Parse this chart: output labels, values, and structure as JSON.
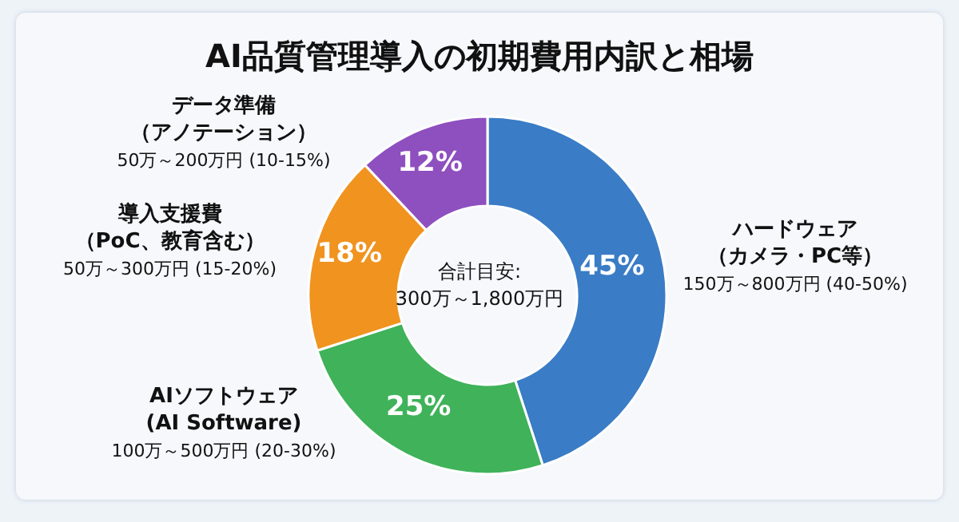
{
  "chart_data": {
    "type": "donut",
    "title": "AI品質管理導入の初期費用内訳と相場",
    "categories": [
      "ハードウェア（カメラ・PC等）\n150万～800万円 (40-50%)",
      "AIソフトウェア\n(AI Software)\n100万～500万円 (20-30%)",
      "導入支援費（PoC、教育含む）\n50万～300万円 (15-20%)",
      "データ準備（アノテーション）\n50万～200万円 (10-15%)"
    ],
    "values": [
      45,
      25,
      18,
      12
    ],
    "value_labels": [
      "45%",
      "25%",
      "18%",
      "12%"
    ],
    "colors": [
      "#3a7cc6",
      "#3fb25a",
      "#f0931f",
      "#8e4fbf"
    ],
    "annotations": [
      "合計目安:\n300万～1,800万円"
    ],
    "legend": false
  }
}
